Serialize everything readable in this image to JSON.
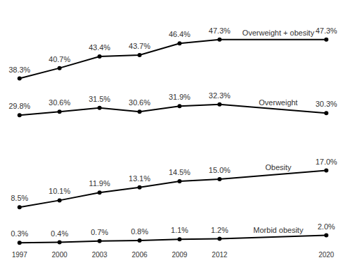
{
  "chart_data": {
    "type": "line",
    "x": [
      1997,
      2000,
      2003,
      2006,
      2009,
      2012,
      2020
    ],
    "xlim": [
      1997,
      2020
    ],
    "xticks": [
      1997,
      2000,
      2003,
      2006,
      2009,
      2012,
      2020
    ],
    "ylim": [
      0,
      50
    ],
    "tick_labels": "x",
    "grid": false,
    "data_labels": true,
    "marker": "circle",
    "color": "#000000",
    "series": [
      {
        "name": "Overweight + obesity",
        "color": "#000000",
        "values": [
          38.3,
          40.7,
          43.4,
          43.7,
          46.4,
          47.3,
          47.3
        ],
        "value_labels": [
          "38.3%",
          "40.7%",
          "43.4%",
          "43.7%",
          "46.4%",
          "47.3%",
          "47.3%"
        ]
      },
      {
        "name": "Overweight",
        "color": "#000000",
        "values": [
          29.8,
          30.6,
          31.5,
          30.6,
          31.9,
          32.3,
          30.3
        ],
        "value_labels": [
          "29.8%",
          "30.6%",
          "31.5%",
          "30.6%",
          "31.9%",
          "32.3%",
          "30.3%"
        ]
      },
      {
        "name": "Obesity",
        "color": "#000000",
        "values": [
          8.5,
          10.1,
          11.9,
          13.1,
          14.5,
          15.0,
          17.0
        ],
        "value_labels": [
          "8.5%",
          "10.1%",
          "11.9%",
          "13.1%",
          "14.5%",
          "15.0%",
          "17.0%"
        ]
      },
      {
        "name": "Morbid obesity",
        "color": "#000000",
        "values": [
          0.3,
          0.4,
          0.7,
          0.8,
          1.1,
          1.2,
          2.0
        ],
        "value_labels": [
          "0.3%",
          "0.4%",
          "0.7%",
          "0.8%",
          "1.1%",
          "1.2%",
          "2.0%"
        ]
      }
    ]
  }
}
